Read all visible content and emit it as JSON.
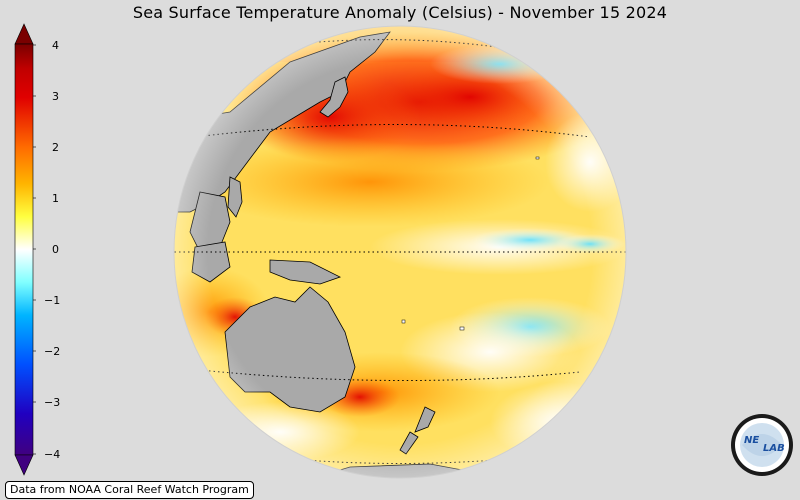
{
  "title": "Sea Surface Temperature Anomaly (Celsius) - November 15 2024",
  "colorbar": {
    "ticks": [
      "4",
      "3",
      "2",
      "1",
      "0",
      "−1",
      "−2",
      "−3",
      "−4"
    ],
    "colors": [
      "#7a0000",
      "#e00000",
      "#ff6a00",
      "#ffb400",
      "#ffff40",
      "#ffffff",
      "#80ffff",
      "#00b4ff",
      "#0050ff",
      "#2000c0",
      "#400080"
    ]
  },
  "map": {
    "land_color": "#a9a9a9",
    "ocean_base": "#ffe060"
  },
  "credit": "Data from NOAA Coral Reef Watch Program",
  "logo": {
    "text_left": "NE",
    "text_right": "LAB"
  }
}
